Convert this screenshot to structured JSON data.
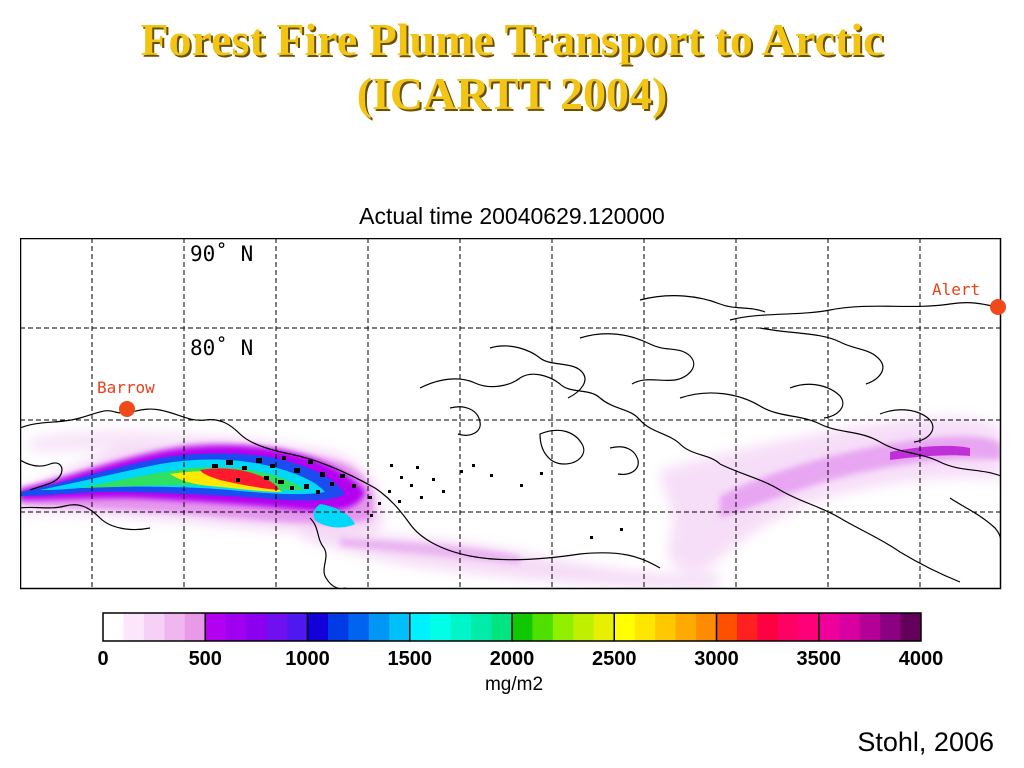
{
  "slide": {
    "title_line1": "Forest Fire Plume Transport to Arctic",
    "title_line2": "(ICARTT 2004)",
    "credit": "Stohl, 2006"
  },
  "map": {
    "caption": "Actual time 20040629.120000",
    "lat_labels": [
      "90˚ N",
      "80˚ N"
    ],
    "sites": [
      "Barrow",
      "Alert"
    ],
    "colors": {
      "site": "#f04a1a",
      "title": "#f2c414"
    }
  },
  "colorbar": {
    "unit": "mg/m2",
    "ticks": [
      "0",
      "500",
      "1000",
      "1500",
      "2000",
      "2500",
      "3000",
      "3500",
      "4000"
    ],
    "range": [
      0,
      4000
    ],
    "colors": [
      "#ffffff",
      "#fbe6fb",
      "#f6d0f6",
      "#f0b6f0",
      "#e89ae8",
      "#b400f0",
      "#a000f0",
      "#8c00f0",
      "#7010f0",
      "#5018f0",
      "#1400d8",
      "#003ce6",
      "#0064f0",
      "#0096f6",
      "#00c0fa",
      "#00f0ff",
      "#00ffe6",
      "#00f5c8",
      "#00eca8",
      "#00e482",
      "#10c800",
      "#50e000",
      "#90f000",
      "#c0f000",
      "#e6f000",
      "#ffff00",
      "#ffe600",
      "#ffc800",
      "#ffaa00",
      "#ff8c00",
      "#ff5000",
      "#ff2020",
      "#ff0040",
      "#ff0064",
      "#ff0078",
      "#f0009a",
      "#d800a0",
      "#b40096",
      "#8c0082",
      "#64005a"
    ]
  }
}
